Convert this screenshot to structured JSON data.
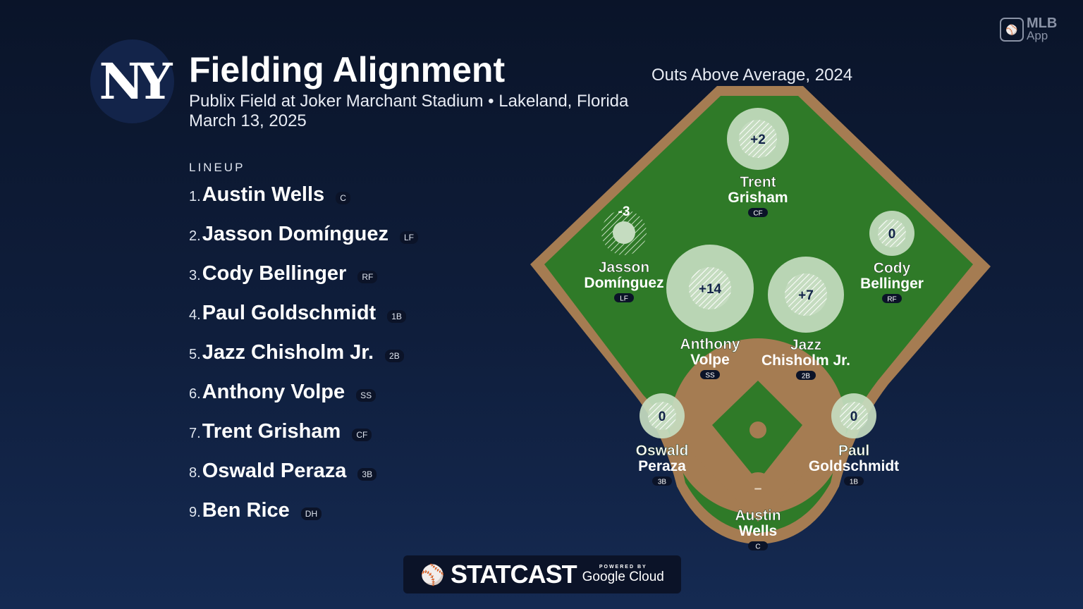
{
  "header": {
    "team_logo": "NY",
    "title": "Fielding Alignment",
    "subtitle": "Publix Field at Joker Marchant Stadium • Lakeland, Florida",
    "date": "March 13, 2025",
    "metric_label": "Outs Above Average, 2024"
  },
  "brand": {
    "mlb_app_line1": "MLB",
    "mlb_app_line2": "App",
    "statcast": "STATCAST",
    "powered_by": "POWERED BY",
    "google_cloud": "Google Cloud"
  },
  "lineup": {
    "label": "LINEUP",
    "players": [
      {
        "order": "1.",
        "name": "Austin Wells",
        "pos": "C"
      },
      {
        "order": "2.",
        "name": "Jasson Domínguez",
        "pos": "LF"
      },
      {
        "order": "3.",
        "name": "Cody Bellinger",
        "pos": "RF"
      },
      {
        "order": "4.",
        "name": "Paul Goldschmidt",
        "pos": "1B"
      },
      {
        "order": "5.",
        "name": "Jazz Chisholm Jr.",
        "pos": "2B"
      },
      {
        "order": "6.",
        "name": "Anthony Volpe",
        "pos": "SS"
      },
      {
        "order": "7.",
        "name": "Trent Grisham",
        "pos": "CF"
      },
      {
        "order": "8.",
        "name": "Oswald Peraza",
        "pos": "3B"
      },
      {
        "order": "9.",
        "name": "Ben Rice",
        "pos": "DH"
      }
    ]
  },
  "field": {
    "colors": {
      "grass": "#2f7a28",
      "dirt": "#a57c52",
      "bubble": "#c5dcc0"
    },
    "players": [
      {
        "first": "Trent",
        "last": "Grisham",
        "pos": "CF",
        "oaa": "+2"
      },
      {
        "first": "Jasson",
        "last": "Domínguez",
        "pos": "LF",
        "oaa": "-3"
      },
      {
        "first": "Cody",
        "last": "Bellinger",
        "pos": "RF",
        "oaa": "0"
      },
      {
        "first": "Anthony",
        "last": "Volpe",
        "pos": "SS",
        "oaa": "+14"
      },
      {
        "first": "Jazz",
        "last": "Chisholm Jr.",
        "pos": "2B",
        "oaa": "+7"
      },
      {
        "first": "Oswald",
        "last": "Peraza",
        "pos": "3B",
        "oaa": "0"
      },
      {
        "first": "Paul",
        "last": "Goldschmidt",
        "pos": "1B",
        "oaa": "0"
      },
      {
        "first": "Austin",
        "last": "Wells",
        "pos": "C",
        "oaa": "–"
      }
    ]
  }
}
